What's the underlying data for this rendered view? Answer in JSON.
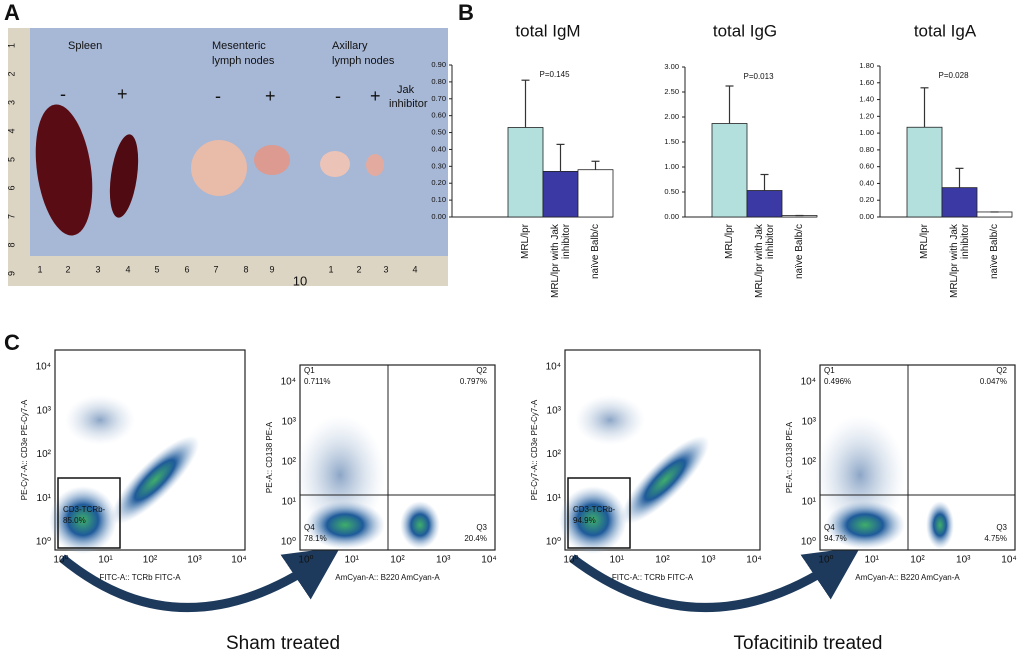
{
  "panel_labels": [
    "A",
    "B",
    "C"
  ],
  "photo": {
    "labels": [
      "Spleen",
      "Mesenteric",
      "lymph nodes",
      "Axillary",
      "lymph nodes",
      "-",
      "+",
      "-",
      "+",
      "-",
      "+",
      "Jak",
      "inhibitor"
    ],
    "ruler_left": [
      "1",
      "2",
      "3",
      "4",
      "5",
      "6",
      "7",
      "8",
      "9"
    ],
    "ruler_bottom": [
      "1",
      "2",
      "3",
      "4",
      "5",
      "6",
      "7",
      "8",
      "9",
      "10",
      "1",
      "2",
      "3",
      "4"
    ]
  },
  "chart_data": [
    {
      "type": "bar",
      "title": "total IgM",
      "annotation": "P=0.145",
      "categories": [
        "MRL/lpr",
        "MRL/lpr with Jak inhibitor",
        "naïve Balb/c"
      ],
      "values": [
        0.53,
        0.27,
        0.28
      ],
      "errors": [
        0.28,
        0.16,
        0.05
      ],
      "colors": [
        "#b3e0dd",
        "#3b3aa5",
        "#ffffff"
      ],
      "ylim": [
        0,
        0.9
      ],
      "yticks": [
        {
          "value": 0,
          "label": "0.00"
        },
        {
          "value": 0.1,
          "label": "0.10"
        },
        {
          "value": 0.2,
          "label": "0.20"
        },
        {
          "value": 0.3,
          "label": "0.30"
        },
        {
          "value": 0.4,
          "label": "0.40"
        },
        {
          "value": 0.5,
          "label": "0.50"
        },
        {
          "value": 0.6,
          "label": "0.60"
        },
        {
          "value": 0.7,
          "label": "0.70"
        },
        {
          "value": 0.8,
          "label": "0.80"
        },
        {
          "value": 0.9,
          "label": "0.90"
        }
      ]
    },
    {
      "type": "bar",
      "title": "total IgG",
      "annotation": "P=0.013",
      "categories": [
        "MRL/lpr",
        "MRL/lpr with Jak inhibitor",
        "naïve Balb/c"
      ],
      "values": [
        1.87,
        0.53,
        0.03
      ],
      "errors": [
        0.75,
        0.32,
        0
      ],
      "colors": [
        "#b3e0dd",
        "#3b3aa5",
        "#ffffff"
      ],
      "ylim": [
        0,
        3
      ],
      "yticks": [
        {
          "value": 0,
          "label": "0.00"
        },
        {
          "value": 0.5,
          "label": "0.50"
        },
        {
          "value": 1,
          "label": "1.00"
        },
        {
          "value": 1.5,
          "label": "1.50"
        },
        {
          "value": 2,
          "label": "2.00"
        },
        {
          "value": 2.5,
          "label": "2.50"
        },
        {
          "value": 3,
          "label": "3.00"
        }
      ]
    },
    {
      "type": "bar",
      "title": "total IgA",
      "annotation": "P=0.028",
      "categories": [
        "MRL/lpr",
        "MRL/lpr with Jak inhibitor",
        "naïve Balb/c"
      ],
      "values": [
        1.07,
        0.35,
        0.06
      ],
      "errors": [
        0.47,
        0.23,
        0
      ],
      "colors": [
        "#b3e0dd",
        "#3b3aa5",
        "#ffffff"
      ],
      "ylim": [
        0,
        1.8
      ],
      "yticks": [
        {
          "value": 0,
          "label": "0.00"
        },
        {
          "value": 0.2,
          "label": "0.20"
        },
        {
          "value": 0.4,
          "label": "0.40"
        },
        {
          "value": 0.6,
          "label": "0.60"
        },
        {
          "value": 0.8,
          "label": "0.80"
        },
        {
          "value": 1,
          "label": "1.00"
        },
        {
          "value": 1.2,
          "label": "1.20"
        },
        {
          "value": 1.4,
          "label": "1.40"
        },
        {
          "value": 1.6,
          "label": "1.60"
        },
        {
          "value": 1.8,
          "label": "1.80"
        }
      ]
    }
  ],
  "flow": {
    "tick_labels": [
      "10⁰",
      "10¹",
      "10²",
      "10³",
      "10⁴"
    ],
    "groups": [
      {
        "caption": "Sham treated",
        "gate_plot": {
          "y_label": "PE-Cy7-A:: CD3e PE-Cy7-A",
          "x_label": "FITC-A:: TCRb FITC-A",
          "gate_name": "CD3-TCRb-",
          "gate_pct": "85.0%"
        },
        "quadrant_plot": {
          "y_label": "PE-A:: CD138 PE-A",
          "x_label": "AmCyan-A:: B220 AmCyan-A",
          "quadrants": [
            {
              "name": "Q1",
              "pct": "0.711%"
            },
            {
              "name": "Q2",
              "pct": "0.797%"
            },
            {
              "name": "Q3",
              "pct": "20.4%"
            },
            {
              "name": "Q4",
              "pct": "78.1%"
            }
          ]
        }
      },
      {
        "caption": "Tofacitinib treated",
        "gate_plot": {
          "y_label": "PE-Cy7-A:: CD3e PE-Cy7-A",
          "x_label": "FITC-A:: TCRb FITC-A",
          "gate_name": "CD3-TCRb-",
          "gate_pct": "94.9%"
        },
        "quadrant_plot": {
          "y_label": "PE-A:: CD138 PE-A",
          "x_label": "AmCyan-A:: B220 AmCyan-A",
          "quadrants": [
            {
              "name": "Q1",
              "pct": "0.496%"
            },
            {
              "name": "Q2",
              "pct": "0.047%"
            },
            {
              "name": "Q3",
              "pct": "4.75%"
            },
            {
              "name": "Q4",
              "pct": "94.7%"
            }
          ]
        }
      }
    ]
  }
}
